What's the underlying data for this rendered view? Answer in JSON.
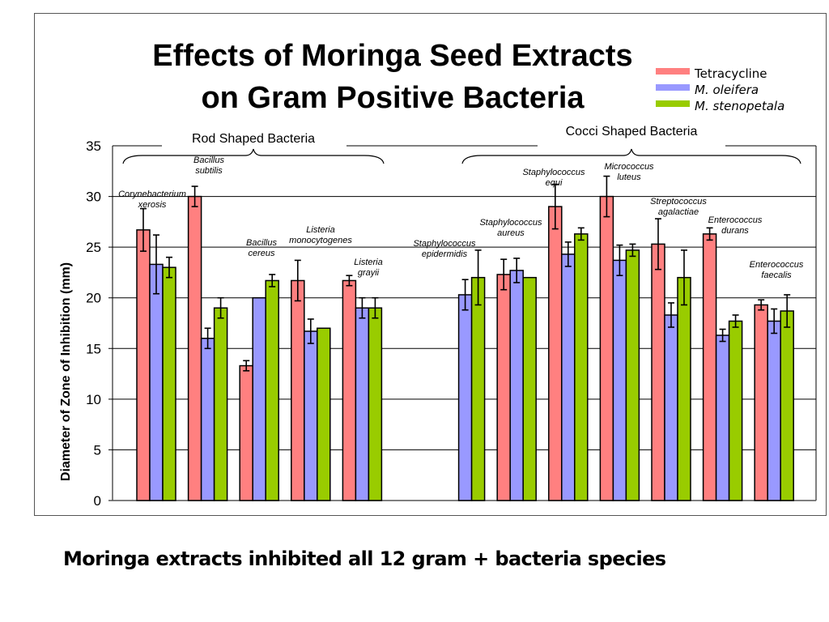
{
  "slide": {
    "caption": "Moringa  extracts inhibited all 12 gram + bacteria species"
  },
  "chart_data": {
    "type": "bar",
    "title": "Effects of Moringa Seed Extracts on Gram Positive Bacteria",
    "title_lines": [
      "Effects of Moringa Seed Extracts",
      "on Gram Positive Bacteria"
    ],
    "xlabel": "",
    "ylabel": "Diameter of Zone of Inhibition (mm)",
    "ylim": [
      0,
      35
    ],
    "yticks": [
      0,
      5,
      10,
      15,
      20,
      25,
      30,
      35
    ],
    "grid": true,
    "legend_position": "top-right",
    "colors": {
      "Tetracycline": "#ff8080",
      "M. oleifera": "#9999ff",
      "M. stenopetala": "#99cc00"
    },
    "group_headers": [
      {
        "label": "Rod Shaped Bacteria",
        "categories": [
          "Corynebacterium xerosis",
          "Bacillus subtilis",
          "Bacillus cereus",
          "Listeria monocytogenes",
          "Listeria grayii"
        ]
      },
      {
        "label": "Cocci Shaped Bacteria",
        "categories": [
          "Staphylococcus epidermidis",
          "Staphylococcus aureus",
          "Staphylococcus equi",
          "Micrococcus luteus",
          "Streptococcus agalactiae",
          "Enterococcus durans",
          "Enterococcus faecalis"
        ]
      }
    ],
    "categories": [
      "Corynebacterium xerosis",
      "Bacillus subtilis",
      "Bacillus cereus",
      "Listeria monocytogenes",
      "Listeria grayii",
      "",
      "Staphylococcus epidermidis",
      "Staphylococcus aureus",
      "Staphylococcus equi",
      "Micrococcus luteus",
      "Streptococcus agalactiae",
      "Enterococcus durans",
      "Enterococcus faecalis"
    ],
    "category_label_lines": [
      [
        "Corynebacterium",
        "xerosis"
      ],
      [
        "Bacillus",
        "subtilis"
      ],
      [
        "Bacillus",
        "cereus"
      ],
      [
        "Listeria",
        "monocytogenes"
      ],
      [
        "Listeria",
        "grayii"
      ],
      [],
      [
        "Staphylococcus",
        "epidermidis"
      ],
      [
        "Staphylococcus",
        "aureus"
      ],
      [
        "Staphylococcus",
        "equi"
      ],
      [
        "Micrococcus",
        "luteus"
      ],
      [
        "Streptococcus",
        "agalactiae"
      ],
      [
        "Enterococcus",
        "durans"
      ],
      [
        "Enterococcus",
        "faecalis"
      ]
    ],
    "series": [
      {
        "name": "Tetracycline",
        "values": [
          26.7,
          30.0,
          13.3,
          21.7,
          21.7,
          null,
          null,
          22.3,
          29.0,
          30.0,
          25.3,
          26.3,
          19.3
        ],
        "errors": [
          2.1,
          1.0,
          0.5,
          2.0,
          0.5,
          null,
          null,
          1.5,
          2.2,
          2.0,
          2.5,
          0.6,
          0.5
        ]
      },
      {
        "name": "M. oleifera",
        "values": [
          23.3,
          16.0,
          20.0,
          16.7,
          19.0,
          null,
          20.3,
          22.7,
          24.3,
          23.7,
          18.3,
          16.3,
          17.7
        ],
        "errors": [
          2.9,
          1.0,
          0.0,
          1.2,
          1.0,
          null,
          1.5,
          1.2,
          1.2,
          1.5,
          1.2,
          0.6,
          1.2
        ]
      },
      {
        "name": "M. stenopetala",
        "values": [
          23.0,
          19.0,
          21.7,
          17.0,
          19.0,
          null,
          22.0,
          22.0,
          26.3,
          24.7,
          22.0,
          17.7,
          18.7
        ],
        "errors": [
          1.0,
          1.0,
          0.6,
          0.0,
          1.0,
          null,
          2.7,
          0.0,
          0.6,
          0.6,
          2.7,
          0.6,
          1.6
        ]
      }
    ]
  }
}
